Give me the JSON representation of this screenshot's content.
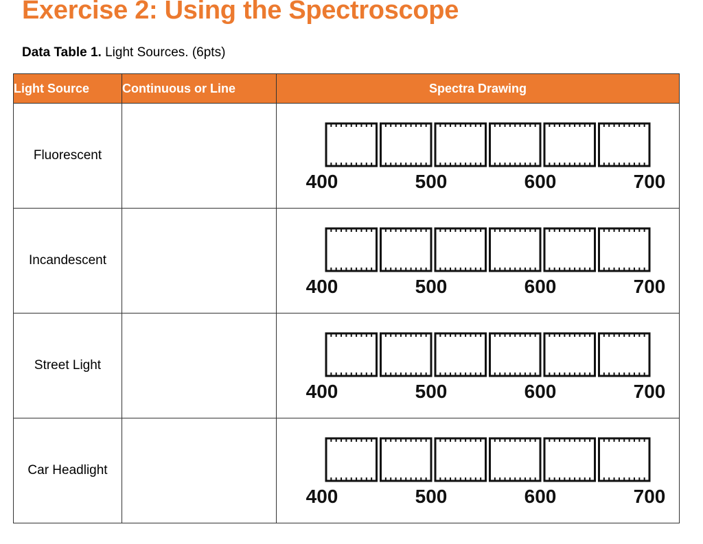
{
  "page": {
    "title": "Exercise 2: Using the Spectroscope",
    "caption_bold": "Data Table 1.",
    "caption_rest": " Light Sources. (6pts)"
  },
  "table": {
    "headers": [
      "Light Source",
      "Continuous or Line",
      "Spectra Drawing"
    ],
    "rows": [
      {
        "source": "Fluorescent",
        "continuous_or_line": ""
      },
      {
        "source": "Incandescent",
        "continuous_or_line": ""
      },
      {
        "source": "Street Light",
        "continuous_or_line": ""
      },
      {
        "source": "Car Headlight",
        "continuous_or_line": ""
      }
    ],
    "scale_labels": [
      "400",
      "500",
      "600",
      "700"
    ]
  },
  "colors": {
    "accent": "#ec7a2f"
  }
}
